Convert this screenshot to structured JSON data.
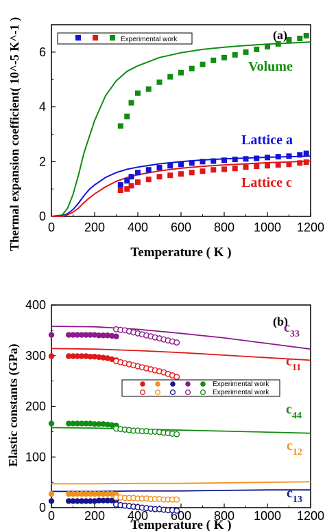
{
  "chart_data": [
    {
      "type": "line",
      "panel_label": "(a)",
      "xlabel": "Temperature ( K )",
      "ylabel": "Thermal expansion coefficient( 10^-5 K^-1 )",
      "xlim": [
        0,
        1200
      ],
      "ylim": [
        0,
        7
      ],
      "xticks": [
        "0",
        "200",
        "400",
        "600",
        "800",
        "1000",
        "1200"
      ],
      "yticks": [
        "0",
        "2",
        "4",
        "6"
      ],
      "legend": {
        "placement": "top-left",
        "label": "Experimental work"
      },
      "annotations": [
        {
          "text": "Volume",
          "color": "#138c13"
        },
        {
          "text": "Lattice a",
          "color": "#1414d8"
        },
        {
          "text": "Lattice c",
          "color": "#e01818"
        }
      ],
      "series": [
        {
          "key": "volume",
          "color": "#138c13",
          "x": [
            0,
            50,
            75,
            100,
            125,
            150,
            175,
            200,
            250,
            300,
            350,
            400,
            500,
            600,
            700,
            800,
            900,
            1000,
            1100,
            1200
          ],
          "y": [
            0,
            0.05,
            0.3,
            0.8,
            1.5,
            2.3,
            2.9,
            3.5,
            4.4,
            4.95,
            5.3,
            5.5,
            5.8,
            5.98,
            6.1,
            6.18,
            6.24,
            6.29,
            6.33,
            6.37
          ]
        },
        {
          "key": "lattice_a",
          "color": "#1414d8",
          "x": [
            0,
            50,
            75,
            100,
            125,
            150,
            175,
            200,
            250,
            300,
            350,
            400,
            500,
            600,
            700,
            800,
            900,
            1000,
            1100,
            1200
          ],
          "y": [
            0,
            0.02,
            0.1,
            0.25,
            0.48,
            0.75,
            0.98,
            1.15,
            1.42,
            1.6,
            1.72,
            1.8,
            1.92,
            2.0,
            2.06,
            2.1,
            2.13,
            2.16,
            2.18,
            2.2
          ]
        },
        {
          "key": "lattice_c",
          "color": "#e01818",
          "x": [
            0,
            50,
            75,
            100,
            125,
            150,
            175,
            200,
            250,
            300,
            350,
            400,
            500,
            600,
            700,
            800,
            900,
            1000,
            1100,
            1200
          ],
          "y": [
            0,
            0.01,
            0.06,
            0.15,
            0.3,
            0.5,
            0.67,
            0.82,
            1.08,
            1.28,
            1.42,
            1.52,
            1.66,
            1.76,
            1.83,
            1.88,
            1.92,
            1.96,
            1.99,
            2.02
          ]
        }
      ],
      "experimental": [
        {
          "key": "volume",
          "color": "#138c13",
          "x": [
            320,
            350,
            370,
            400,
            450,
            500,
            550,
            600,
            650,
            700,
            750,
            800,
            850,
            900,
            950,
            1000,
            1050,
            1100,
            1150,
            1180
          ],
          "y": [
            3.3,
            3.65,
            4.15,
            4.5,
            4.65,
            4.9,
            5.1,
            5.25,
            5.4,
            5.55,
            5.7,
            5.8,
            5.9,
            6.0,
            6.1,
            6.2,
            6.3,
            6.45,
            6.5,
            6.6
          ]
        },
        {
          "key": "lattice_a",
          "color": "#1414d8",
          "x": [
            320,
            350,
            370,
            400,
            450,
            500,
            550,
            600,
            650,
            700,
            750,
            800,
            850,
            900,
            950,
            1000,
            1050,
            1100,
            1150,
            1180
          ],
          "y": [
            1.15,
            1.3,
            1.45,
            1.6,
            1.7,
            1.78,
            1.85,
            1.9,
            1.95,
            2.0,
            2.02,
            2.05,
            2.08,
            2.1,
            2.12,
            2.15,
            2.18,
            2.2,
            2.25,
            2.3
          ]
        },
        {
          "key": "lattice_c",
          "color": "#e01818",
          "x": [
            320,
            350,
            370,
            400,
            450,
            500,
            550,
            600,
            650,
            700,
            750,
            800,
            850,
            900,
            950,
            1000,
            1050,
            1100,
            1150,
            1180
          ],
          "y": [
            0.95,
            1.0,
            1.12,
            1.25,
            1.35,
            1.45,
            1.5,
            1.55,
            1.6,
            1.65,
            1.7,
            1.72,
            1.75,
            1.8,
            1.83,
            1.85,
            1.88,
            1.9,
            1.95,
            1.98
          ]
        }
      ]
    },
    {
      "type": "line",
      "panel_label": "(b)",
      "xlabel": "Temperature ( K )",
      "ylabel": "Elastic constants (GPa)",
      "xlim": [
        0,
        1200
      ],
      "ylim": [
        0,
        400
      ],
      "xticks": [
        "0",
        "200",
        "400",
        "600",
        "800",
        "1000",
        "1200"
      ],
      "yticks": [
        "0",
        "100",
        "200",
        "300",
        "400"
      ],
      "legend": {
        "placement": "center",
        "labels": [
          "Experimental work",
          "Experimental work"
        ]
      },
      "annotations": [
        {
          "text": "c33",
          "color": "#8b1a8b"
        },
        {
          "text": "c11",
          "color": "#e01818"
        },
        {
          "text": "c44",
          "color": "#138c13"
        },
        {
          "text": "c12",
          "color": "#f0901a"
        },
        {
          "text": "c13",
          "color": "#14148c"
        }
      ],
      "series": [
        {
          "key": "c33",
          "color": "#8b1a8b",
          "x": [
            0,
            200,
            400,
            600,
            800,
            1000,
            1200
          ],
          "y": [
            358,
            357,
            352,
            344,
            335,
            324,
            313
          ]
        },
        {
          "key": "c11",
          "color": "#e01818",
          "x": [
            0,
            200,
            400,
            600,
            800,
            1000,
            1200
          ],
          "y": [
            314,
            313,
            310,
            306,
            301,
            296,
            291
          ]
        },
        {
          "key": "c44",
          "color": "#138c13",
          "x": [
            0,
            200,
            400,
            600,
            800,
            1000,
            1200
          ],
          "y": [
            158,
            157,
            155,
            153,
            151,
            149,
            147
          ]
        },
        {
          "key": "c12",
          "color": "#f0901a",
          "x": [
            0,
            200,
            400,
            600,
            800,
            1000,
            1200
          ],
          "y": [
            47,
            47,
            48,
            48,
            49,
            50,
            51
          ]
        },
        {
          "key": "c13",
          "color": "#14148c",
          "x": [
            0,
            200,
            400,
            600,
            800,
            1000,
            1200
          ],
          "y": [
            32,
            32,
            33,
            33,
            34,
            35,
            35
          ]
        }
      ],
      "experimental_filled": [
        {
          "key": "c33",
          "color": "#8b1a8b",
          "x": [
            0,
            80,
            100,
            120,
            140,
            160,
            180,
            200,
            220,
            240,
            260,
            280,
            300
          ],
          "y": [
            341,
            341,
            341,
            341,
            341,
            341,
            341,
            341,
            340,
            340,
            340,
            339,
            338
          ]
        },
        {
          "key": "c11",
          "color": "#e01818",
          "x": [
            0,
            80,
            100,
            120,
            140,
            160,
            180,
            200,
            220,
            240,
            260,
            280,
            300
          ],
          "y": [
            299,
            299,
            299,
            299,
            299,
            299,
            298,
            298,
            297,
            296,
            295,
            293,
            291
          ]
        },
        {
          "key": "c44",
          "color": "#138c13",
          "x": [
            0,
            80,
            100,
            120,
            140,
            160,
            180,
            200,
            220,
            240,
            260,
            280,
            300
          ],
          "y": [
            166,
            166,
            166,
            166,
            166,
            166,
            166,
            165,
            165,
            165,
            164,
            163,
            162
          ]
        },
        {
          "key": "c12",
          "color": "#f0901a",
          "x": [
            0,
            80,
            100,
            120,
            140,
            160,
            180,
            200,
            220,
            240,
            260,
            280,
            300
          ],
          "y": [
            27,
            27,
            27,
            27,
            27,
            27,
            27,
            27,
            27,
            27,
            27,
            27,
            26
          ]
        },
        {
          "key": "c13",
          "color": "#14148c",
          "x": [
            0,
            80,
            100,
            120,
            140,
            160,
            180,
            200,
            220,
            240,
            260,
            280,
            300
          ],
          "y": [
            13,
            13,
            13,
            13,
            13,
            13,
            13,
            13,
            14,
            14,
            14,
            14,
            15
          ]
        }
      ],
      "experimental_open": [
        {
          "key": "c33",
          "color": "#8b1a8b",
          "x": [
            300,
            320,
            340,
            360,
            380,
            400,
            420,
            440,
            460,
            480,
            500,
            520,
            540,
            560,
            580
          ],
          "y": [
            352,
            351,
            350,
            348,
            346,
            344,
            342,
            340,
            338,
            336,
            334,
            332,
            330,
            328,
            326
          ]
        },
        {
          "key": "c11",
          "color": "#e01818",
          "x": [
            300,
            320,
            340,
            360,
            380,
            400,
            420,
            440,
            460,
            480,
            500,
            520,
            540,
            560,
            580
          ],
          "y": [
            289,
            287,
            285,
            283,
            281,
            279,
            277,
            275,
            273,
            271,
            269,
            267,
            264,
            261,
            258
          ]
        },
        {
          "key": "c44",
          "color": "#138c13",
          "x": [
            300,
            320,
            340,
            360,
            380,
            400,
            420,
            440,
            460,
            480,
            500,
            520,
            540,
            560,
            580
          ],
          "y": [
            156,
            155,
            154,
            153,
            152,
            152,
            151,
            151,
            150,
            150,
            149,
            148,
            147,
            146,
            145
          ]
        },
        {
          "key": "c12",
          "color": "#f0901a",
          "x": [
            300,
            320,
            340,
            360,
            380,
            400,
            420,
            440,
            460,
            480,
            500,
            520,
            540,
            560,
            580
          ],
          "y": [
            20,
            20,
            19,
            19,
            19,
            18,
            18,
            18,
            17,
            17,
            17,
            16,
            16,
            16,
            16
          ]
        },
        {
          "key": "c13",
          "color": "#14148c",
          "x": [
            300,
            320,
            340,
            360,
            380,
            400,
            420,
            440,
            460,
            480,
            500,
            520,
            540,
            560,
            580
          ],
          "y": [
            6,
            5,
            4,
            3,
            2,
            1,
            0,
            -1,
            -2,
            -3,
            -3,
            -4,
            -5,
            -5,
            -6
          ]
        }
      ]
    }
  ]
}
